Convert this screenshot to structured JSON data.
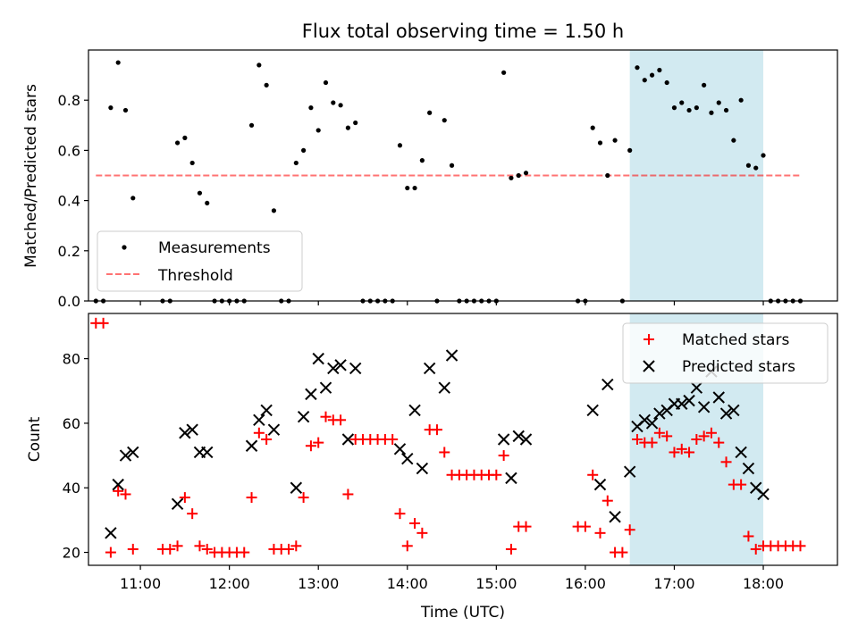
{
  "title": "Flux total observing time = 1.50 h",
  "colors": {
    "measurement": "#000000",
    "threshold": "#ff0000",
    "matched": "#ff0000",
    "predicted": "#000000",
    "highlight": "#add8e6"
  },
  "chart_data": [
    {
      "type": "scatter",
      "panel": "top",
      "xlabel": "",
      "ylabel": "Matched/Predicted stars",
      "xlim": [
        "10:25",
        "18:50"
      ],
      "ylim": [
        0,
        1.0
      ],
      "yticks": [
        "0.0",
        "0.2",
        "0.4",
        "0.6",
        "0.8"
      ],
      "grid": false,
      "legend_position": "lower-left",
      "legend": [
        {
          "label": "Measurements",
          "marker": "dot"
        },
        {
          "label": "Threshold",
          "marker": "dashed-line"
        }
      ],
      "highlight_span": [
        "16:30",
        "18:00"
      ],
      "threshold": {
        "y": 0.5,
        "x_range": [
          "10:30",
          "18:25"
        ]
      },
      "series": [
        {
          "name": "Measurements",
          "points": [
            [
              "10:30",
              0
            ],
            [
              "10:35",
              0
            ],
            [
              "10:40",
              0.77
            ],
            [
              "10:45",
              0.95
            ],
            [
              "10:50",
              0.76
            ],
            [
              "10:55",
              0.41
            ],
            [
              "11:15",
              0
            ],
            [
              "11:20",
              0
            ],
            [
              "11:25",
              0.63
            ],
            [
              "11:30",
              0.65
            ],
            [
              "11:35",
              0.55
            ],
            [
              "11:40",
              0.43
            ],
            [
              "11:45",
              0.39
            ],
            [
              "11:50",
              0
            ],
            [
              "11:55",
              0
            ],
            [
              "12:00",
              0
            ],
            [
              "12:05",
              0
            ],
            [
              "12:10",
              0
            ],
            [
              "12:15",
              0.7
            ],
            [
              "12:20",
              0.94
            ],
            [
              "12:25",
              0.86
            ],
            [
              "12:30",
              0.36
            ],
            [
              "12:35",
              0
            ],
            [
              "12:40",
              0
            ],
            [
              "12:45",
              0.55
            ],
            [
              "12:50",
              0.6
            ],
            [
              "12:55",
              0.77
            ],
            [
              "13:00",
              0.68
            ],
            [
              "13:05",
              0.87
            ],
            [
              "13:10",
              0.79
            ],
            [
              "13:15",
              0.78
            ],
            [
              "13:20",
              0.69
            ],
            [
              "13:25",
              0.71
            ],
            [
              "13:30",
              0
            ],
            [
              "13:35",
              0
            ],
            [
              "13:40",
              0
            ],
            [
              "13:45",
              0
            ],
            [
              "13:50",
              0
            ],
            [
              "13:55",
              0.62
            ],
            [
              "14:00",
              0.45
            ],
            [
              "14:05",
              0.45
            ],
            [
              "14:10",
              0.56
            ],
            [
              "14:15",
              0.75
            ],
            [
              "14:20",
              0
            ],
            [
              "14:25",
              0.72
            ],
            [
              "14:30",
              0.54
            ],
            [
              "14:35",
              0
            ],
            [
              "14:40",
              0
            ],
            [
              "14:45",
              0
            ],
            [
              "14:50",
              0
            ],
            [
              "14:55",
              0
            ],
            [
              "15:00",
              0
            ],
            [
              "15:05",
              0.91
            ],
            [
              "15:10",
              0.49
            ],
            [
              "15:15",
              0.5
            ],
            [
              "15:20",
              0.51
            ],
            [
              "15:55",
              0
            ],
            [
              "16:00",
              0
            ],
            [
              "16:05",
              0.69
            ],
            [
              "16:10",
              0.63
            ],
            [
              "16:15",
              0.5
            ],
            [
              "16:20",
              0.64
            ],
            [
              "16:25",
              0
            ],
            [
              "16:30",
              0.6
            ],
            [
              "16:35",
              0.93
            ],
            [
              "16:40",
              0.88
            ],
            [
              "16:45",
              0.9
            ],
            [
              "16:50",
              0.92
            ],
            [
              "16:55",
              0.87
            ],
            [
              "17:00",
              0.77
            ],
            [
              "17:05",
              0.79
            ],
            [
              "17:10",
              0.76
            ],
            [
              "17:15",
              0.77
            ],
            [
              "17:20",
              0.86
            ],
            [
              "17:25",
              0.75
            ],
            [
              "17:30",
              0.79
            ],
            [
              "17:35",
              0.76
            ],
            [
              "17:40",
              0.64
            ],
            [
              "17:45",
              0.8
            ],
            [
              "17:50",
              0.54
            ],
            [
              "17:55",
              0.53
            ],
            [
              "18:00",
              0.58
            ],
            [
              "18:05",
              0
            ],
            [
              "18:10",
              0
            ],
            [
              "18:15",
              0
            ],
            [
              "18:20",
              0
            ],
            [
              "18:25",
              0
            ]
          ]
        }
      ]
    },
    {
      "type": "scatter",
      "panel": "bottom",
      "xlabel": "Time (UTC)",
      "ylabel": "Count",
      "xlim": [
        "10:25",
        "18:50"
      ],
      "ylim": [
        16,
        94
      ],
      "xticks": [
        "11:00",
        "12:00",
        "13:00",
        "14:00",
        "15:00",
        "16:00",
        "17:00",
        "18:00"
      ],
      "yticks": [
        "20",
        "40",
        "60",
        "80"
      ],
      "grid": false,
      "legend_position": "upper-right",
      "legend": [
        {
          "label": "Matched stars",
          "marker": "plus"
        },
        {
          "label": "Predicted stars",
          "marker": "x"
        }
      ],
      "highlight_span": [
        "16:30",
        "18:00"
      ],
      "series": [
        {
          "name": "Matched stars",
          "points": [
            [
              "10:30",
              91
            ],
            [
              "10:35",
              91
            ],
            [
              "10:40",
              20
            ],
            [
              "10:45",
              39
            ],
            [
              "10:50",
              38
            ],
            [
              "10:55",
              21
            ],
            [
              "11:15",
              21
            ],
            [
              "11:20",
              21
            ],
            [
              "11:25",
              22
            ],
            [
              "11:30",
              37
            ],
            [
              "11:35",
              32
            ],
            [
              "11:40",
              22
            ],
            [
              "11:45",
              21
            ],
            [
              "11:50",
              20
            ],
            [
              "11:55",
              20
            ],
            [
              "12:00",
              20
            ],
            [
              "12:05",
              20
            ],
            [
              "12:10",
              20
            ],
            [
              "12:15",
              37
            ],
            [
              "12:20",
              57
            ],
            [
              "12:25",
              55
            ],
            [
              "12:30",
              21
            ],
            [
              "12:35",
              21
            ],
            [
              "12:40",
              21
            ],
            [
              "12:45",
              22
            ],
            [
              "12:50",
              37
            ],
            [
              "12:55",
              53
            ],
            [
              "13:00",
              54
            ],
            [
              "13:05",
              62
            ],
            [
              "13:10",
              61
            ],
            [
              "13:15",
              61
            ],
            [
              "13:20",
              38
            ],
            [
              "13:25",
              55
            ],
            [
              "13:30",
              55
            ],
            [
              "13:35",
              55
            ],
            [
              "13:40",
              55
            ],
            [
              "13:45",
              55
            ],
            [
              "13:50",
              55
            ],
            [
              "13:55",
              32
            ],
            [
              "14:00",
              22
            ],
            [
              "14:05",
              29
            ],
            [
              "14:10",
              26
            ],
            [
              "14:15",
              58
            ],
            [
              "14:20",
              58
            ],
            [
              "14:25",
              51
            ],
            [
              "14:30",
              44
            ],
            [
              "14:35",
              44
            ],
            [
              "14:40",
              44
            ],
            [
              "14:45",
              44
            ],
            [
              "14:50",
              44
            ],
            [
              "14:55",
              44
            ],
            [
              "15:00",
              44
            ],
            [
              "15:05",
              50
            ],
            [
              "15:10",
              21
            ],
            [
              "15:15",
              28
            ],
            [
              "15:20",
              28
            ],
            [
              "15:55",
              28
            ],
            [
              "16:00",
              28
            ],
            [
              "16:05",
              44
            ],
            [
              "16:10",
              26
            ],
            [
              "16:15",
              36
            ],
            [
              "16:20",
              20
            ],
            [
              "16:25",
              20
            ],
            [
              "16:30",
              27
            ],
            [
              "16:35",
              55
            ],
            [
              "16:40",
              54
            ],
            [
              "16:45",
              54
            ],
            [
              "16:50",
              57
            ],
            [
              "16:55",
              56
            ],
            [
              "17:00",
              51
            ],
            [
              "17:05",
              52
            ],
            [
              "17:10",
              51
            ],
            [
              "17:15",
              55
            ],
            [
              "17:20",
              56
            ],
            [
              "17:25",
              57
            ],
            [
              "17:30",
              54
            ],
            [
              "17:35",
              48
            ],
            [
              "17:40",
              41
            ],
            [
              "17:45",
              41
            ],
            [
              "17:50",
              25
            ],
            [
              "17:55",
              21
            ],
            [
              "18:00",
              22
            ],
            [
              "18:05",
              22
            ],
            [
              "18:10",
              22
            ],
            [
              "18:15",
              22
            ],
            [
              "18:20",
              22
            ],
            [
              "18:25",
              22
            ]
          ]
        },
        {
          "name": "Predicted stars",
          "points": [
            [
              "10:40",
              26
            ],
            [
              "10:45",
              41
            ],
            [
              "10:50",
              50
            ],
            [
              "10:55",
              51
            ],
            [
              "11:25",
              35
            ],
            [
              "11:30",
              57
            ],
            [
              "11:35",
              58
            ],
            [
              "11:40",
              51
            ],
            [
              "11:45",
              51
            ],
            [
              "12:15",
              53
            ],
            [
              "12:20",
              61
            ],
            [
              "12:25",
              64
            ],
            [
              "12:30",
              58
            ],
            [
              "12:45",
              40
            ],
            [
              "12:50",
              62
            ],
            [
              "12:55",
              69
            ],
            [
              "13:00",
              80
            ],
            [
              "13:05",
              71
            ],
            [
              "13:10",
              77
            ],
            [
              "13:15",
              78
            ],
            [
              "13:20",
              55
            ],
            [
              "13:25",
              77
            ],
            [
              "13:55",
              52
            ],
            [
              "14:00",
              49
            ],
            [
              "14:05",
              64
            ],
            [
              "14:10",
              46
            ],
            [
              "14:15",
              77
            ],
            [
              "14:25",
              71
            ],
            [
              "14:30",
              81
            ],
            [
              "15:05",
              55
            ],
            [
              "15:10",
              43
            ],
            [
              "15:15",
              56
            ],
            [
              "15:20",
              55
            ],
            [
              "16:05",
              64
            ],
            [
              "16:10",
              41
            ],
            [
              "16:15",
              72
            ],
            [
              "16:20",
              31
            ],
            [
              "16:30",
              45
            ],
            [
              "16:35",
              59
            ],
            [
              "16:40",
              61
            ],
            [
              "16:45",
              60
            ],
            [
              "16:50",
              63
            ],
            [
              "16:55",
              64
            ],
            [
              "17:00",
              66
            ],
            [
              "17:05",
              66
            ],
            [
              "17:10",
              67
            ],
            [
              "17:15",
              71
            ],
            [
              "17:20",
              65
            ],
            [
              "17:25",
              76
            ],
            [
              "17:30",
              68
            ],
            [
              "17:35",
              63
            ],
            [
              "17:40",
              64
            ],
            [
              "17:45",
              51
            ],
            [
              "17:50",
              46
            ],
            [
              "17:55",
              40
            ],
            [
              "18:00",
              38
            ]
          ]
        }
      ]
    }
  ]
}
